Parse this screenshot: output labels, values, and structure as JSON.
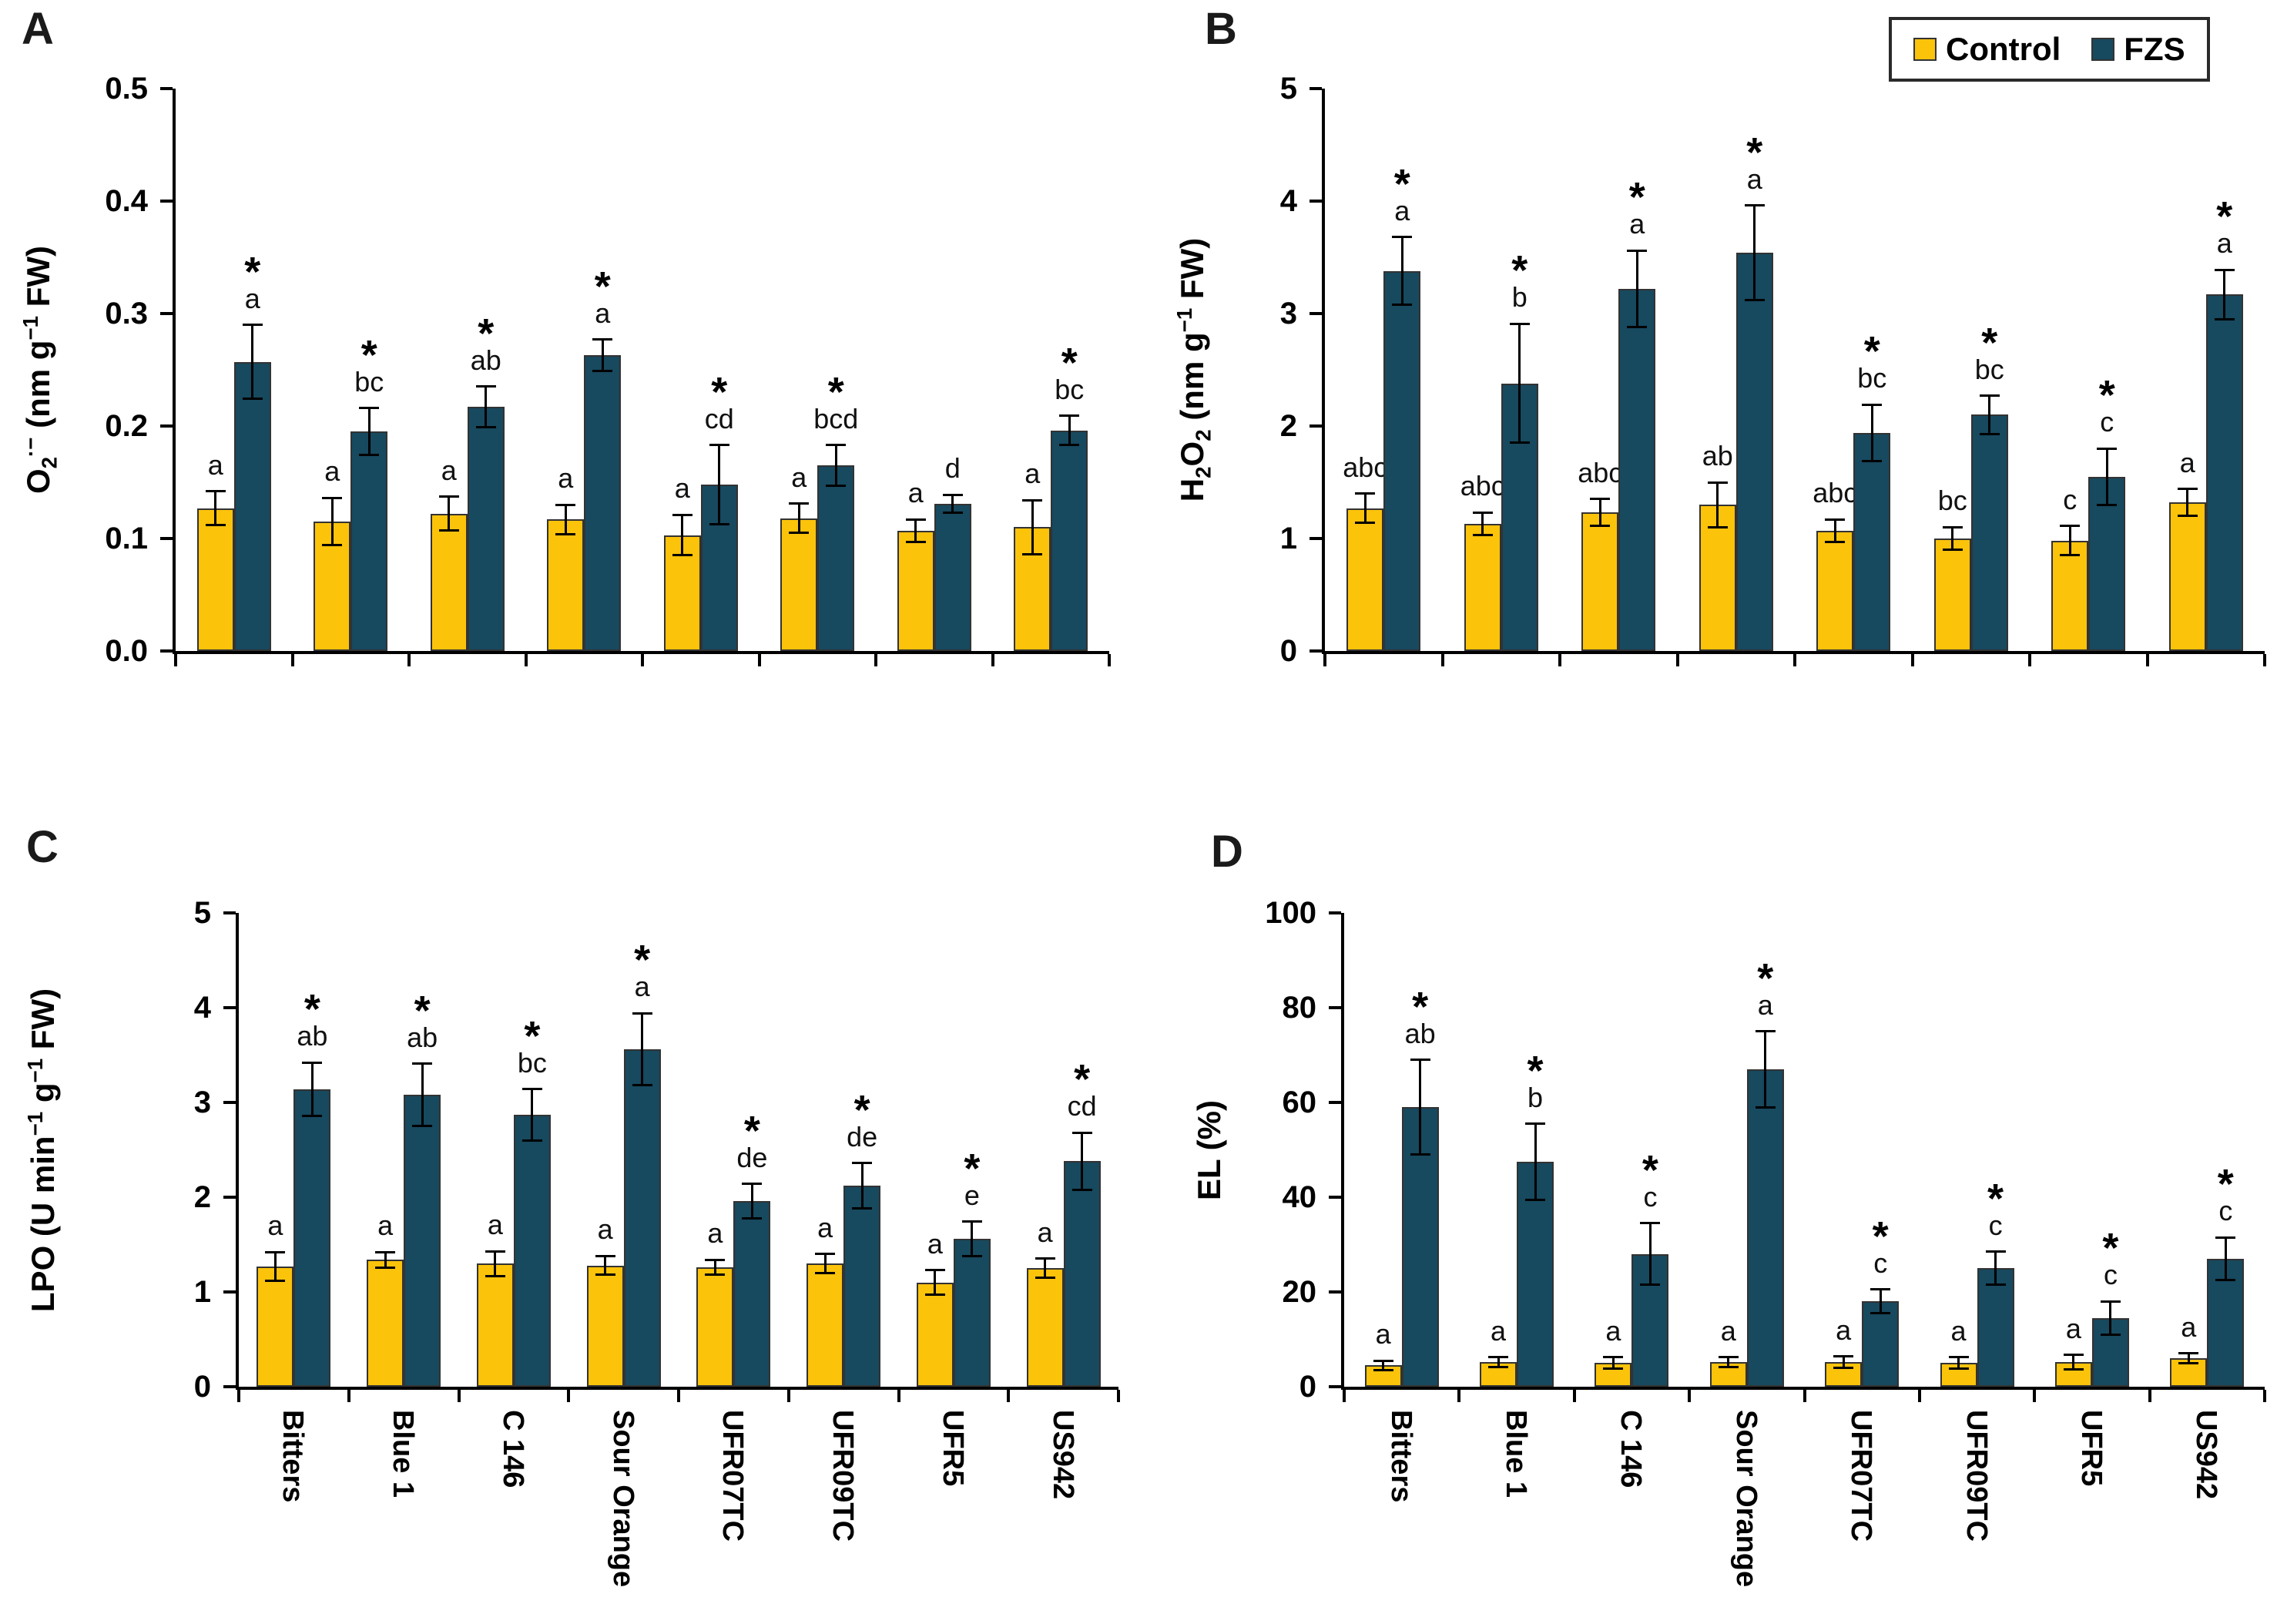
{
  "legend": {
    "items": [
      {
        "label": "Control",
        "color": "#FCC30B"
      },
      {
        "label": "FZS",
        "color": "#17495F"
      }
    ]
  },
  "colors": {
    "control_bar": "#FCC30B",
    "fzs_bar": "#17495F",
    "bar_border": "#333333",
    "axis": "#000000"
  },
  "categories": [
    "Bitters",
    "Blue 1",
    "C 146",
    "Sour Orange",
    "UFR07TC",
    "UFR09TC",
    "UFR5",
    "US942"
  ],
  "chart_data": [
    {
      "panel_label": "A",
      "type": "bar",
      "ylabel_text": "O2·- (nm g-1 FW)",
      "ylabel_segments": [
        {
          "t": "O"
        },
        {
          "t": "2",
          "s": "sub"
        },
        {
          "t": "·−",
          "s": "sup"
        },
        {
          "t": " (nm g"
        },
        {
          "t": "−1",
          "s": "sup"
        },
        {
          "t": " FW)"
        }
      ],
      "ylim": [
        0,
        0.5
      ],
      "yticks": [
        0,
        0.1,
        0.2,
        0.3,
        0.4,
        0.5
      ],
      "ytick_labels": [
        "0.0",
        "0.1",
        "0.2",
        "0.3",
        "0.4",
        "0.5"
      ],
      "grid": false,
      "show_x_labels": false,
      "series": [
        {
          "name": "Control",
          "values": [
            0.127,
            0.115,
            0.122,
            0.117,
            0.103,
            0.118,
            0.107,
            0.11
          ],
          "errors": [
            0.015,
            0.021,
            0.015,
            0.013,
            0.018,
            0.013,
            0.01,
            0.024
          ],
          "letters": [
            "a",
            "a",
            "a",
            "a",
            "a",
            "a",
            "a",
            "a"
          ],
          "significant": [
            false,
            false,
            false,
            false,
            false,
            false,
            false,
            false
          ]
        },
        {
          "name": "FZS",
          "values": [
            0.257,
            0.195,
            0.217,
            0.263,
            0.148,
            0.165,
            0.131,
            0.196
          ],
          "errors": [
            0.033,
            0.021,
            0.018,
            0.014,
            0.035,
            0.018,
            0.008,
            0.013
          ],
          "letters": [
            "a",
            "bc",
            "ab",
            "a",
            "cd",
            "bcd",
            "d",
            "bc"
          ],
          "significant": [
            true,
            true,
            true,
            true,
            true,
            true,
            false,
            true
          ]
        }
      ]
    },
    {
      "panel_label": "B",
      "type": "bar",
      "ylabel_text": "H2O2 (nm g-1 FW)",
      "ylabel_segments": [
        {
          "t": "H"
        },
        {
          "t": "2",
          "s": "sub"
        },
        {
          "t": "O"
        },
        {
          "t": "2",
          "s": "sub"
        },
        {
          "t": " (nm g"
        },
        {
          "t": "−1",
          "s": "sup"
        },
        {
          "t": " FW)"
        }
      ],
      "ylim": [
        0,
        5
      ],
      "yticks": [
        0,
        1,
        2,
        3,
        4,
        5
      ],
      "ytick_labels": [
        "0",
        "1",
        "2",
        "3",
        "4",
        "5"
      ],
      "grid": false,
      "show_x_labels": false,
      "series": [
        {
          "name": "Control",
          "values": [
            1.27,
            1.13,
            1.23,
            1.3,
            1.07,
            1.0,
            0.98,
            1.32
          ],
          "errors": [
            0.13,
            0.1,
            0.12,
            0.2,
            0.1,
            0.1,
            0.13,
            0.12
          ],
          "letters": [
            "abc",
            "abc",
            "abc",
            "ab",
            "abc",
            "bc",
            "c",
            "a"
          ],
          "significant": [
            false,
            false,
            false,
            false,
            false,
            false,
            false,
            false
          ]
        },
        {
          "name": "FZS",
          "values": [
            3.38,
            2.38,
            3.22,
            3.54,
            1.94,
            2.1,
            1.55,
            3.17
          ],
          "errors": [
            0.3,
            0.53,
            0.34,
            0.42,
            0.25,
            0.17,
            0.25,
            0.22
          ],
          "letters": [
            "a",
            "b",
            "a",
            "a",
            "bc",
            "bc",
            "c",
            "a"
          ],
          "significant": [
            true,
            true,
            true,
            true,
            true,
            true,
            true,
            true
          ]
        }
      ]
    },
    {
      "panel_label": "C",
      "type": "bar",
      "ylabel_text": "LPO (U min-1 g-1 FW)",
      "ylabel_segments": [
        {
          "t": "LPO (U min"
        },
        {
          "t": "−1",
          "s": "sup"
        },
        {
          "t": " g"
        },
        {
          "t": "−1",
          "s": "sup"
        },
        {
          "t": " FW)"
        }
      ],
      "ylim": [
        0,
        5
      ],
      "yticks": [
        0,
        1,
        2,
        3,
        4,
        5
      ],
      "ytick_labels": [
        "0",
        "1",
        "2",
        "3",
        "4",
        "5"
      ],
      "grid": false,
      "show_x_labels": true,
      "series": [
        {
          "name": "Control",
          "values": [
            1.27,
            1.34,
            1.3,
            1.28,
            1.26,
            1.3,
            1.1,
            1.25
          ],
          "errors": [
            0.15,
            0.08,
            0.13,
            0.1,
            0.08,
            0.1,
            0.13,
            0.1
          ],
          "letters": [
            "a",
            "a",
            "a",
            "a",
            "a",
            "a",
            "a",
            "a"
          ],
          "significant": [
            false,
            false,
            false,
            false,
            false,
            false,
            false,
            false
          ]
        },
        {
          "name": "FZS",
          "values": [
            3.14,
            3.08,
            2.87,
            3.56,
            1.96,
            2.12,
            1.56,
            2.38
          ],
          "errors": [
            0.28,
            0.33,
            0.27,
            0.38,
            0.18,
            0.24,
            0.18,
            0.3
          ],
          "letters": [
            "ab",
            "ab",
            "bc",
            "a",
            "de",
            "de",
            "e",
            "cd"
          ],
          "significant": [
            true,
            true,
            true,
            true,
            true,
            true,
            true,
            true
          ]
        }
      ]
    },
    {
      "panel_label": "D",
      "type": "bar",
      "ylabel_text": "EL (%)",
      "ylabel_segments": [
        {
          "t": "EL (%)"
        }
      ],
      "ylim": [
        0,
        100
      ],
      "yticks": [
        0,
        20,
        40,
        60,
        80,
        100
      ],
      "ytick_labels": [
        "0",
        "20",
        "40",
        "60",
        "80",
        "100"
      ],
      "grid": false,
      "show_x_labels": true,
      "series": [
        {
          "name": "Control",
          "values": [
            4.5,
            5.2,
            5.0,
            5.2,
            5.2,
            5.0,
            5.2,
            6.0
          ],
          "errors": [
            1.0,
            1.0,
            1.2,
            1.0,
            1.2,
            1.2,
            1.5,
            1.0
          ],
          "letters": [
            "a",
            "a",
            "a",
            "a",
            "a",
            "a",
            "a",
            "a"
          ],
          "significant": [
            false,
            false,
            false,
            false,
            false,
            false,
            false,
            false
          ]
        },
        {
          "name": "FZS",
          "values": [
            59,
            47.5,
            28,
            67,
            18,
            25,
            14.5,
            27
          ],
          "errors": [
            10,
            8,
            6.5,
            8,
            2.5,
            3.5,
            3.5,
            4.5
          ],
          "letters": [
            "ab",
            "b",
            "c",
            "a",
            "c",
            "c",
            "c",
            "c"
          ],
          "significant": [
            true,
            true,
            true,
            true,
            true,
            true,
            true,
            true
          ]
        }
      ]
    }
  ]
}
